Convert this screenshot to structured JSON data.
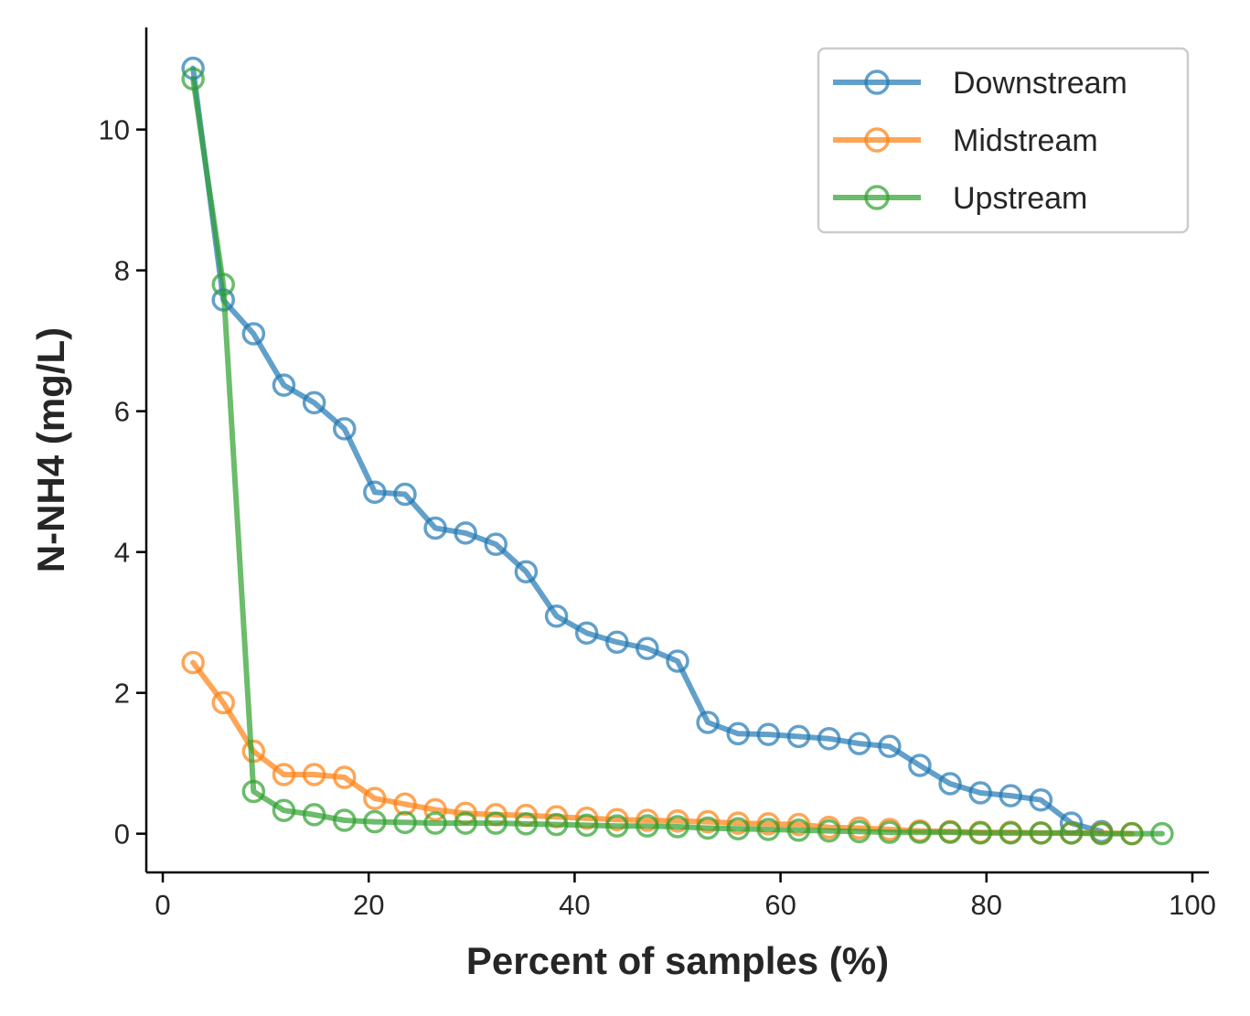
{
  "chart_data": {
    "type": "line",
    "title": "",
    "xlabel": "Percent of samples (%)",
    "ylabel": "N-NH4 (mg/L)",
    "xlim": [
      -1.6,
      101.6
    ],
    "ylim": [
      -0.55,
      11.45
    ],
    "xticks": [
      "0",
      "20",
      "40",
      "60",
      "80",
      "100"
    ],
    "yticks": [
      "0",
      "2",
      "4",
      "6",
      "8",
      "10"
    ],
    "grid": false,
    "legend_position": "top-right",
    "marker": "open-circle",
    "series": [
      {
        "name": "Downstream",
        "color": "#1f77b4",
        "x": [
          2.94,
          5.88,
          8.82,
          11.76,
          14.71,
          17.65,
          20.59,
          23.53,
          26.47,
          29.41,
          32.35,
          35.29,
          38.24,
          41.18,
          44.12,
          47.06,
          50.0,
          52.94,
          55.88,
          58.82,
          61.76,
          64.71,
          67.65,
          70.59,
          73.53,
          76.47,
          79.41,
          82.35,
          85.29,
          88.24,
          91.18
        ],
        "y": [
          10.87,
          7.58,
          7.1,
          6.37,
          6.12,
          5.75,
          4.85,
          4.82,
          4.34,
          4.27,
          4.11,
          3.72,
          3.09,
          2.85,
          2.72,
          2.63,
          2.45,
          1.58,
          1.42,
          1.41,
          1.38,
          1.35,
          1.28,
          1.24,
          0.97,
          0.71,
          0.58,
          0.54,
          0.48,
          0.15,
          0.03
        ]
      },
      {
        "name": "Midstream",
        "color": "#ff7f0e",
        "x": [
          2.94,
          5.88,
          8.82,
          11.76,
          14.71,
          17.65,
          20.59,
          23.53,
          26.47,
          29.41,
          32.35,
          35.29,
          38.24,
          41.18,
          44.12,
          47.06,
          50.0,
          52.94,
          55.88,
          58.82,
          61.76,
          64.71,
          67.65,
          70.59,
          73.53,
          76.47,
          79.41,
          82.35,
          85.29,
          88.24,
          91.18,
          94.12
        ],
        "y": [
          2.43,
          1.86,
          1.17,
          0.84,
          0.84,
          0.8,
          0.5,
          0.42,
          0.34,
          0.29,
          0.27,
          0.26,
          0.24,
          0.22,
          0.2,
          0.19,
          0.18,
          0.17,
          0.15,
          0.14,
          0.13,
          0.09,
          0.08,
          0.06,
          0.04,
          0.03,
          0.02,
          0.02,
          0.01,
          0.01,
          0.01,
          0.0
        ]
      },
      {
        "name": "Upstream",
        "color": "#2ca02c",
        "x": [
          2.94,
          5.88,
          8.82,
          11.76,
          14.71,
          17.65,
          20.59,
          23.53,
          26.47,
          29.41,
          32.35,
          35.29,
          38.24,
          41.18,
          44.12,
          47.06,
          50.0,
          52.94,
          55.88,
          58.82,
          61.76,
          64.71,
          67.65,
          70.59,
          73.53,
          76.47,
          79.41,
          82.35,
          85.29,
          88.24,
          91.18,
          94.12,
          97.06
        ],
        "y": [
          10.72,
          7.8,
          0.6,
          0.33,
          0.27,
          0.19,
          0.17,
          0.16,
          0.15,
          0.15,
          0.15,
          0.14,
          0.13,
          0.12,
          0.11,
          0.11,
          0.1,
          0.08,
          0.07,
          0.06,
          0.05,
          0.04,
          0.03,
          0.02,
          0.02,
          0.02,
          0.01,
          0.01,
          0.01,
          0.01,
          0.0,
          0.0,
          0.0
        ]
      }
    ]
  }
}
